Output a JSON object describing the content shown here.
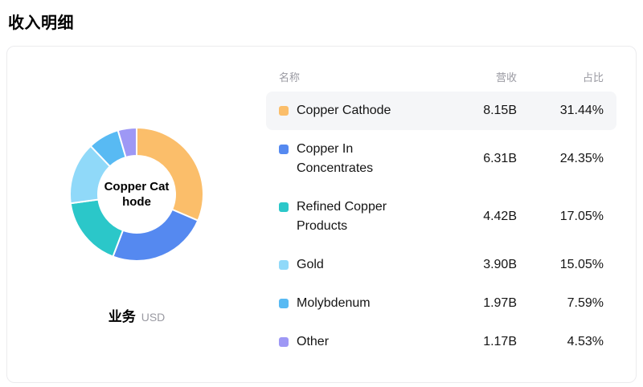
{
  "page": {
    "title": "收入明细"
  },
  "table": {
    "headers": {
      "name": "名称",
      "revenue": "营收",
      "percent": "占比"
    },
    "highlighted_row_index": 0
  },
  "chart": {
    "center_label": "Copper Cathode",
    "caption": "业务",
    "unit": "USD"
  },
  "chart_data": {
    "type": "pie",
    "title": "收入明细",
    "donut": true,
    "start_angle_deg": -90,
    "direction": "clockwise",
    "center_label": "Copper Cathode",
    "unit": "USD",
    "legend_position": "right-table",
    "items": [
      {
        "label": "Copper Cathode",
        "revenue": "8.15B",
        "percent": "31.44%",
        "value": 31.44,
        "color": "#FBBE6A"
      },
      {
        "label": "Copper In Concentrates",
        "revenue": "6.31B",
        "percent": "24.35%",
        "value": 24.35,
        "color": "#5589F0"
      },
      {
        "label": "Refined Copper Products",
        "revenue": "4.42B",
        "percent": "17.05%",
        "value": 17.05,
        "color": "#2BC7C9"
      },
      {
        "label": "Gold",
        "revenue": "3.90B",
        "percent": "15.05%",
        "value": 15.05,
        "color": "#90D9F9"
      },
      {
        "label": "Molybdenum",
        "revenue": "1.97B",
        "percent": "7.59%",
        "value": 7.59,
        "color": "#58BAF3"
      },
      {
        "label": "Other",
        "revenue": "1.17B",
        "percent": "4.53%",
        "value": 4.53,
        "color": "#9E98F5"
      }
    ]
  }
}
